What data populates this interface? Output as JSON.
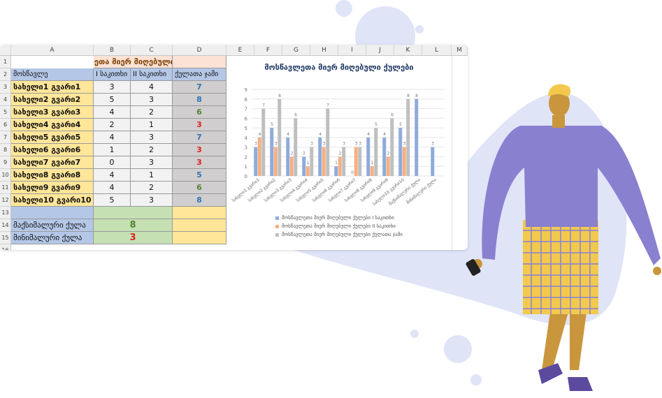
{
  "sheet": {
    "columns": [
      "A",
      "B",
      "C",
      "D",
      "E",
      "F",
      "G",
      "H",
      "I",
      "J",
      "K",
      "L",
      "M"
    ],
    "rows": [
      "1",
      "2",
      "3",
      "4",
      "5",
      "6",
      "7",
      "8",
      "9",
      "10",
      "11",
      "12",
      "13",
      "14",
      "15",
      "16"
    ],
    "title": "მოსწავლეთა მიერ მიღებული ქულები",
    "headers": [
      "მოსწავლე",
      "I საკითხი",
      "II  საკითხი",
      "ქულათა ჯამი"
    ],
    "students": [
      {
        "name": "სახელი1 გვარი1",
        "q1": "3",
        "q2": "4",
        "total": "7"
      },
      {
        "name": "სახელი2 გვარი2",
        "q1": "5",
        "q2": "3",
        "total": "8"
      },
      {
        "name": "სახელი3 გვარი3",
        "q1": "4",
        "q2": "2",
        "total": "6"
      },
      {
        "name": "სახელი4 გვარი4",
        "q1": "2",
        "q2": "1",
        "total": "3"
      },
      {
        "name": "სახელი5 გვარი5",
        "q1": "4",
        "q2": "3",
        "total": "7"
      },
      {
        "name": "სახელი6 გვარი6",
        "q1": "1",
        "q2": "2",
        "total": "3"
      },
      {
        "name": "სახელი7 გვარი7",
        "q1": "0",
        "q2": "3",
        "total": "3"
      },
      {
        "name": "სახელი8 გვარი8",
        "q1": "4",
        "q2": "1",
        "total": "5"
      },
      {
        "name": "სახელი9 გვარი9",
        "q1": "4",
        "q2": "2",
        "total": "6"
      },
      {
        "name": "სახელი10 გვარი10",
        "q1": "5",
        "q2": "3",
        "total": "8"
      }
    ],
    "max_label": "მაქსიმალური ქულა",
    "max_value": "8",
    "min_label": "მინიმალური ქულა",
    "min_value": "3",
    "colors": {
      "title_fill": "#fbe2d5",
      "header_fill": "#b4c7e7",
      "name_fill": "#ffe699",
      "score_fill": "#f2f2f2",
      "total_fill": "#d0cece",
      "stat_fill": "#c5e0b3",
      "yellow_fill": "#ffe699",
      "blue_text": "#2e75b6",
      "green_text": "#548235",
      "red_text": "#e02020"
    }
  },
  "chart_data": {
    "type": "bar",
    "title": "მოსწავლეთა მიერ მიღებული ქულები",
    "categories": [
      "სახელი1 გვარი1",
      "სახელი2 გვარი2",
      "სახელი3 გვარი3",
      "სახელი4 გვარი4",
      "სახელი5 გვარი5",
      "სახელი6 გვარი6",
      "სახელი7 გვარი7",
      "სახელი8 გვარი8",
      "სახელი9 გვარი9",
      "სახელი10 გვარი10",
      "მაქსიმალური ქულა",
      "მინიმალური ქულა"
    ],
    "series": [
      {
        "name": "მოსწავლეთა მიერ მიღებული ქულები I საკითხი",
        "color": "#8faadc",
        "values": [
          3,
          5,
          4,
          2,
          4,
          1,
          0,
          4,
          4,
          5,
          8,
          3
        ]
      },
      {
        "name": "მოსწავლეთა მიერ მიღებული ქულები II  საკითხი",
        "color": "#f4b183",
        "values": [
          4,
          3,
          2,
          1,
          3,
          2,
          3,
          1,
          2,
          3,
          null,
          null
        ]
      },
      {
        "name": "მოსწავლეთა მიერ მიღებული ქულები ქულათა ჯამი",
        "color": "#bfbfbf",
        "values": [
          7,
          8,
          6,
          3,
          7,
          3,
          3,
          5,
          6,
          8,
          null,
          null
        ]
      }
    ],
    "yticks": [
      "0",
      "1",
      "2",
      "3",
      "4",
      "5",
      "6",
      "7",
      "8",
      "9"
    ],
    "ylim": [
      0,
      9
    ],
    "grid": true,
    "legend": "bottom"
  }
}
